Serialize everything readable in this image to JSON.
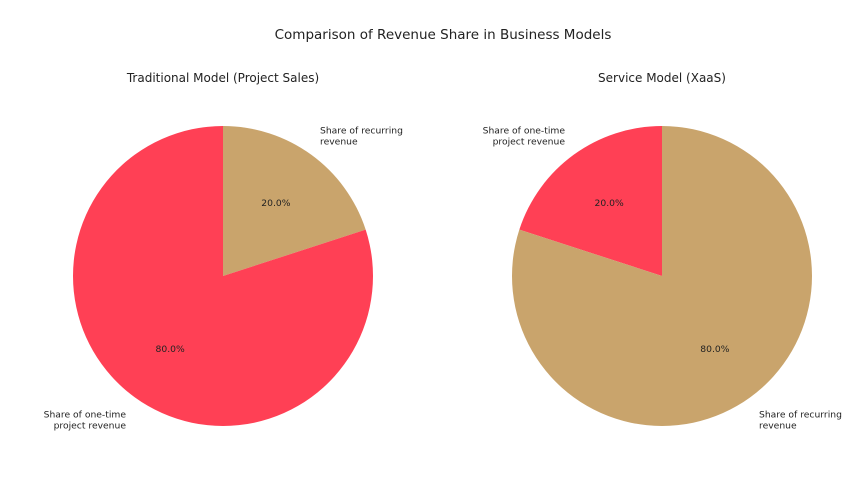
{
  "figure": {
    "title": "Comparison of Revenue Share in Business Models"
  },
  "chart_data": [
    {
      "type": "pie",
      "title": "Traditional Model (Project Sales)",
      "labels": [
        "Share of recurring revenue",
        "Share of one-time project revenue"
      ],
      "label_lines": [
        [
          "Share of recurring",
          "revenue"
        ],
        [
          "Share of one-time",
          "project revenue"
        ]
      ],
      "values": [
        20.0,
        80.0
      ],
      "display": [
        "20.0%",
        "80.0%"
      ],
      "colors": [
        "#C9A46C",
        "#FF4055"
      ],
      "start_angle_deg": 90,
      "direction": "clockwise",
      "legend": "none"
    },
    {
      "type": "pie",
      "title": "Service Model (XaaS)",
      "labels": [
        "Share of one-time project revenue",
        "Share of recurring revenue"
      ],
      "label_lines": [
        [
          "Share of one-time",
          "project revenue"
        ],
        [
          "Share of recurring",
          "revenue"
        ]
      ],
      "values": [
        20.0,
        80.0
      ],
      "display": [
        "20.0%",
        "80.0%"
      ],
      "colors": [
        "#FF4055",
        "#C9A46C"
      ],
      "start_angle_deg": 90,
      "direction": "counterclockwise",
      "legend": "none"
    }
  ]
}
